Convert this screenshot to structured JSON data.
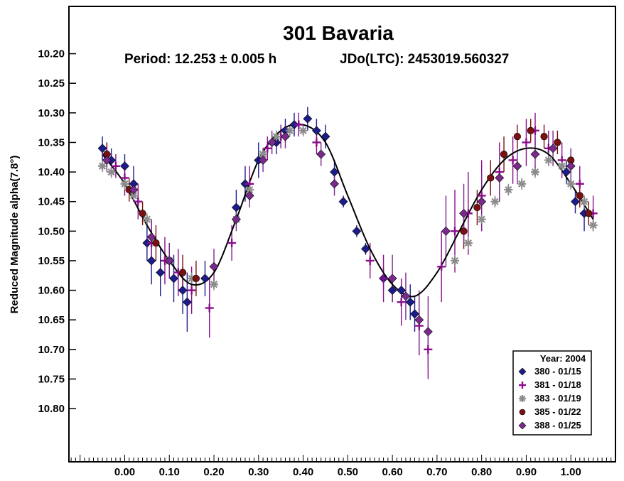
{
  "chart_data": {
    "type": "scatter",
    "title": "301 Bavaria",
    "period_text": "Period: 12.253 ± 0.005 h",
    "epoch_text": "JDo(LTC): 2453019.560327",
    "ylabel": "Reduced Magnitude alpha(7.8°)",
    "xlabel": "",
    "xlim": [
      -0.125,
      1.1
    ],
    "ylim": [
      10.89,
      10.12
    ],
    "y_inverted": true,
    "x_ticks": [
      0.0,
      0.1,
      0.2,
      0.3,
      0.4,
      0.5,
      0.6,
      0.7,
      0.8,
      0.9,
      1.0
    ],
    "x_tick_labels": [
      "0.00",
      "0.10",
      "0.20",
      "0.30",
      "0.40",
      "0.50",
      "0.60",
      "0.70",
      "0.80",
      "0.90",
      "1.00"
    ],
    "y_ticks": [
      10.2,
      10.25,
      10.3,
      10.35,
      10.4,
      10.45,
      10.5,
      10.55,
      10.6,
      10.65,
      10.7,
      10.75,
      10.8
    ],
    "y_tick_labels": [
      "10.20",
      "10.25",
      "10.30",
      "10.35",
      "10.40",
      "10.45",
      "10.50",
      "10.55",
      "10.60",
      "10.65",
      "10.70",
      "10.75",
      "10.80"
    ],
    "grid": false,
    "legend": {
      "title": "Year: 2004",
      "placement": "bottom-right"
    },
    "fit_curve": {
      "color": "#000000",
      "x": [
        -0.05,
        0.0,
        0.05,
        0.1,
        0.15,
        0.2,
        0.25,
        0.3,
        0.35,
        0.4,
        0.45,
        0.5,
        0.55,
        0.6,
        0.65,
        0.7,
        0.75,
        0.8,
        0.85,
        0.9,
        0.95,
        1.0,
        1.05
      ],
      "y": [
        10.37,
        10.42,
        10.49,
        10.55,
        10.59,
        10.57,
        10.48,
        10.38,
        10.33,
        10.32,
        10.35,
        10.44,
        10.53,
        10.59,
        10.61,
        10.57,
        10.5,
        10.43,
        10.38,
        10.36,
        10.37,
        10.42,
        10.48
      ]
    },
    "series": [
      {
        "name": "380 - 01/15",
        "marker": "diamond",
        "color": "#1c1c8c",
        "x": [
          -0.05,
          -0.03,
          0.0,
          0.02,
          0.05,
          0.06,
          0.08,
          0.11,
          0.13,
          0.14,
          0.18,
          0.25,
          0.27,
          0.3,
          0.34,
          0.36,
          0.38,
          0.41,
          0.43,
          0.45,
          0.47,
          0.49,
          0.52,
          0.54,
          0.58,
          0.6,
          0.62,
          0.64,
          0.65,
          0.99,
          1.01,
          1.03
        ],
        "y": [
          10.36,
          10.38,
          10.39,
          10.42,
          10.52,
          10.55,
          10.57,
          10.58,
          10.6,
          10.62,
          10.58,
          10.46,
          10.42,
          10.38,
          10.35,
          10.33,
          10.32,
          10.31,
          10.33,
          10.34,
          10.4,
          10.45,
          10.5,
          10.53,
          10.58,
          10.6,
          10.6,
          10.62,
          10.64,
          10.4,
          10.45,
          10.47
        ],
        "err": [
          0.02,
          0.02,
          0.02,
          0.03,
          0.03,
          0.04,
          0.04,
          0.04,
          0.04,
          0.05,
          0.03,
          0.03,
          0.03,
          0.03,
          0.02,
          0.02,
          0.02,
          0.02,
          0.02,
          0.02,
          0.02,
          0.01,
          0.01,
          0.01,
          0.02,
          0.02,
          0.02,
          0.03,
          0.03,
          0.02,
          0.02,
          0.03
        ]
      },
      {
        "name": "381 - 01/18",
        "marker": "plus",
        "color": "#8b0d8b",
        "x": [
          -0.04,
          -0.02,
          0.0,
          0.03,
          0.06,
          0.09,
          0.12,
          0.15,
          0.19,
          0.24,
          0.28,
          0.32,
          0.35,
          0.39,
          0.43,
          0.55,
          0.58,
          0.62,
          0.66,
          0.68,
          0.71,
          0.74,
          0.77,
          0.8,
          0.84,
          0.87,
          0.9,
          0.92,
          0.95,
          0.98,
          1.02,
          1.05
        ],
        "y": [
          10.37,
          10.39,
          10.41,
          10.45,
          10.52,
          10.55,
          10.57,
          10.6,
          10.63,
          10.52,
          10.42,
          10.36,
          10.34,
          10.32,
          10.35,
          10.55,
          10.58,
          10.62,
          10.66,
          10.7,
          10.56,
          10.5,
          10.47,
          10.44,
          10.4,
          10.38,
          10.35,
          10.33,
          10.36,
          10.38,
          10.42,
          10.47
        ],
        "err": [
          0.02,
          0.02,
          0.03,
          0.03,
          0.04,
          0.04,
          0.04,
          0.04,
          0.05,
          0.03,
          0.03,
          0.02,
          0.02,
          0.02,
          0.02,
          0.03,
          0.04,
          0.04,
          0.05,
          0.05,
          0.06,
          0.07,
          0.07,
          0.06,
          0.05,
          0.04,
          0.04,
          0.03,
          0.03,
          0.03,
          0.03,
          0.03
        ]
      },
      {
        "name": "383 - 01/19",
        "marker": "asterisk",
        "color": "#8c8c8c",
        "x": [
          -0.05,
          -0.03,
          0.0,
          0.02,
          0.05,
          0.1,
          0.15,
          0.2,
          0.25,
          0.28,
          0.31,
          0.34,
          0.37,
          0.4,
          0.74,
          0.77,
          0.8,
          0.83,
          0.86,
          0.89,
          0.92,
          0.95,
          0.98,
          1.0,
          1.03,
          1.05
        ],
        "y": [
          10.39,
          10.4,
          10.42,
          10.44,
          10.48,
          10.55,
          10.58,
          10.59,
          10.48,
          10.43,
          10.37,
          10.34,
          10.33,
          10.33,
          10.55,
          10.52,
          10.48,
          10.45,
          10.43,
          10.42,
          10.4,
          10.38,
          10.39,
          10.42,
          10.45,
          10.49
        ],
        "err": [
          0.01,
          0.01,
          0.01,
          0.01,
          0.01,
          0.01,
          0.01,
          0.01,
          0.01,
          0.01,
          0.01,
          0.01,
          0.01,
          0.01,
          0.01,
          0.01,
          0.01,
          0.01,
          0.01,
          0.01,
          0.01,
          0.01,
          0.01,
          0.01,
          0.01,
          0.01
        ]
      },
      {
        "name": "385 - 01/22",
        "marker": "circle",
        "color": "#7a1010",
        "x": [
          -0.04,
          0.01,
          0.04,
          0.07,
          0.1,
          0.13,
          0.16,
          0.76,
          0.79,
          0.82,
          0.85,
          0.88,
          0.91,
          0.94,
          0.97,
          1.0,
          1.02,
          1.04
        ],
        "y": [
          10.37,
          10.43,
          10.47,
          10.52,
          10.55,
          10.57,
          10.58,
          10.5,
          10.46,
          10.41,
          10.37,
          10.34,
          10.33,
          10.34,
          10.35,
          10.38,
          10.44,
          10.47
        ],
        "err": [
          0.02,
          0.02,
          0.02,
          0.03,
          0.03,
          0.03,
          0.03,
          0.03,
          0.03,
          0.03,
          0.03,
          0.02,
          0.02,
          0.02,
          0.02,
          0.02,
          0.02,
          0.02
        ]
      },
      {
        "name": "388 - 01/25",
        "marker": "diamond",
        "color": "#7a2a8c",
        "x": [
          -0.04,
          0.02,
          0.06,
          0.1,
          0.2,
          0.25,
          0.28,
          0.31,
          0.33,
          0.36,
          0.44,
          0.47,
          0.6,
          0.63,
          0.66,
          0.68,
          0.72,
          0.76,
          0.8,
          0.84,
          0.88,
          0.92,
          0.96,
          1.0
        ],
        "y": [
          10.38,
          10.43,
          10.51,
          10.55,
          10.56,
          10.48,
          10.44,
          10.38,
          10.35,
          10.34,
          10.37,
          10.42,
          10.58,
          10.61,
          10.65,
          10.67,
          10.5,
          10.47,
          10.45,
          10.41,
          10.39,
          10.37,
          10.36,
          10.39
        ],
        "err": [
          0.02,
          0.02,
          0.03,
          0.03,
          0.03,
          0.02,
          0.02,
          0.02,
          0.02,
          0.02,
          0.02,
          0.02,
          0.04,
          0.04,
          0.05,
          0.06,
          0.06,
          0.05,
          0.05,
          0.04,
          0.03,
          0.03,
          0.03,
          0.03
        ]
      }
    ]
  }
}
